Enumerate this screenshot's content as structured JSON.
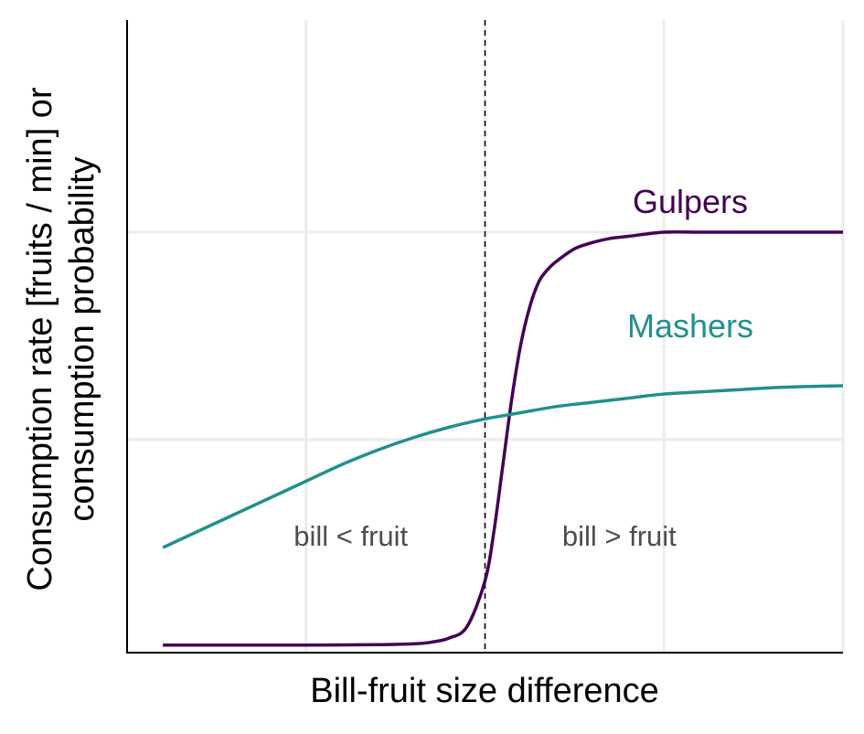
{
  "chart_data": {
    "type": "line",
    "xlabel": "Bill-fruit size difference",
    "ylabel_line1": "Consumption rate [fruits / min] or",
    "ylabel_line2": "consumption probability",
    "xlim": [
      -10,
      10
    ],
    "ylim": [
      0,
      1
    ],
    "threshold_x": 0,
    "grid": true,
    "series": [
      {
        "name": "Gulpers",
        "color": "#440154",
        "x": [
          -9,
          -7,
          -5,
          -3,
          -2,
          -1.5,
          -1,
          -0.5,
          0,
          0.25,
          0.5,
          0.75,
          1,
          1.25,
          1.5,
          1.75,
          2,
          2.5,
          3,
          3.5,
          4,
          5,
          6,
          7,
          8,
          9,
          10
        ],
        "y": [
          0.005,
          0.005,
          0.005,
          0.006,
          0.008,
          0.012,
          0.022,
          0.05,
          0.16,
          0.28,
          0.44,
          0.6,
          0.73,
          0.82,
          0.88,
          0.91,
          0.93,
          0.96,
          0.975,
          0.985,
          0.99,
          1.0,
          1.0,
          1.0,
          1.0,
          1.0,
          1.0
        ]
      },
      {
        "name": "Mashers",
        "color": "#21908C",
        "x": [
          -9,
          -8,
          -7,
          -6,
          -5,
          -4,
          -3,
          -2,
          -1,
          0,
          1,
          2,
          3,
          4,
          5,
          6,
          7,
          8,
          9,
          10
        ],
        "y": [
          0.24,
          0.28,
          0.32,
          0.36,
          0.4,
          0.44,
          0.475,
          0.505,
          0.53,
          0.55,
          0.565,
          0.58,
          0.59,
          0.6,
          0.61,
          0.615,
          0.62,
          0.625,
          0.628,
          0.63
        ]
      }
    ],
    "annotations": [
      {
        "text": "bill < fruit",
        "x": -3.75,
        "y": 0.245
      },
      {
        "text": "bill > fruit",
        "x": 3.75,
        "y": 0.245
      }
    ]
  }
}
